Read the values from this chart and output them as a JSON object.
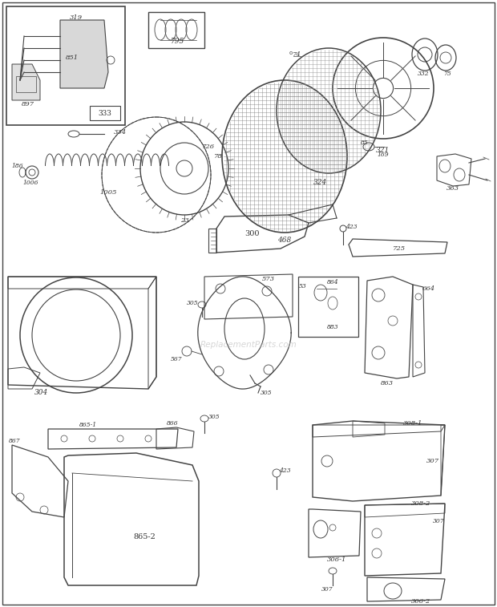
{
  "bg_color": "#ffffff",
  "line_color": "#444444",
  "watermark": "ReplacementParts.com"
}
